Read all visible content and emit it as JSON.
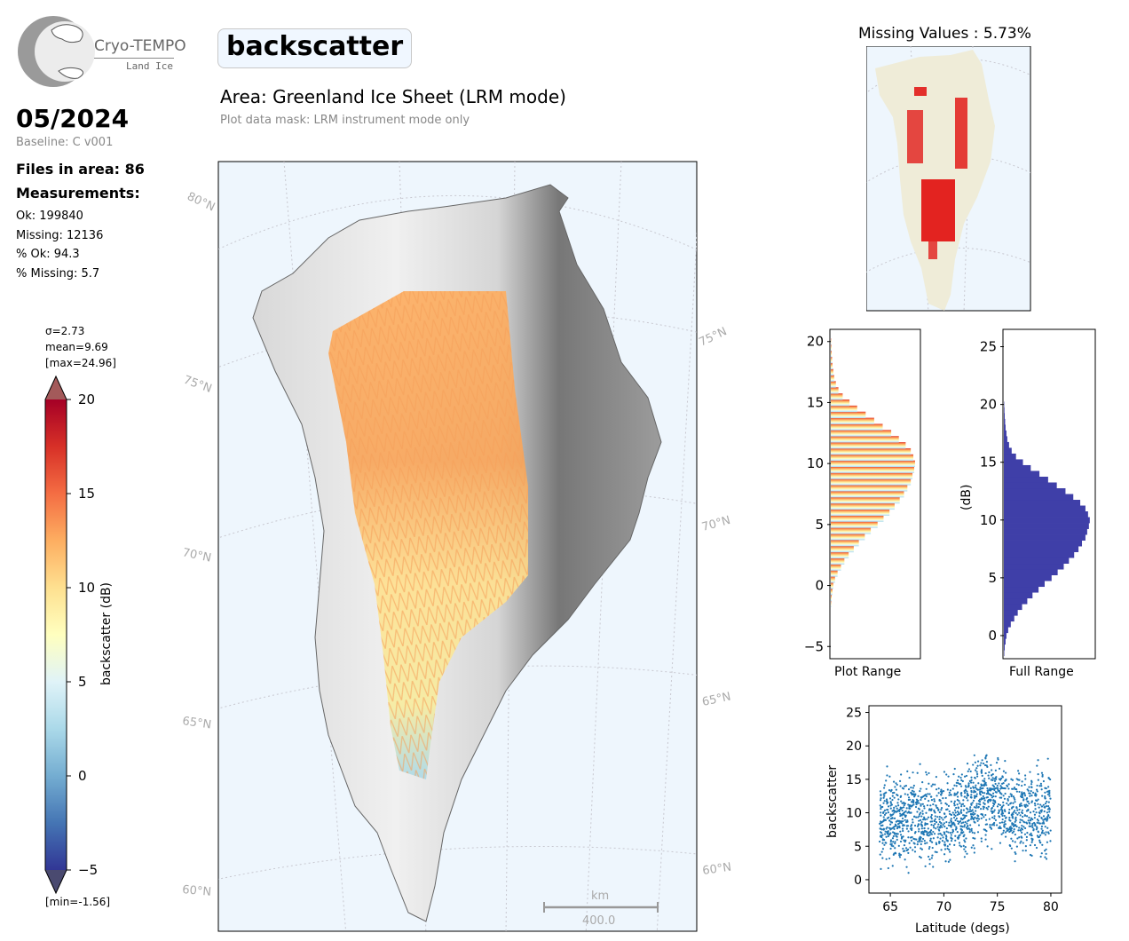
{
  "logo": {
    "name": "Cryo-TEMPO",
    "subtitle": "Land Ice"
  },
  "header": {
    "date": "05/2024",
    "baseline": "Baseline: C v001",
    "files": "Files in area: 86",
    "measurements_label": "Measurements:",
    "stats": [
      "Ok: 199840",
      "Missing: 12136",
      "% Ok: 94.3",
      "% Missing: 5.7"
    ]
  },
  "main": {
    "parameter": "backscatter",
    "area": "Area: Greenland Ice Sheet (LRM mode)",
    "mask": "Plot data mask: LRM instrument mode only"
  },
  "colorbar": {
    "sigma": "σ=2.73",
    "mean": "mean=9.69",
    "max": "[max=24.96]",
    "min": "[min=-1.56]",
    "label": "backscatter (dB)",
    "ticks": [
      "20",
      "15",
      "10",
      "5",
      "0",
      "−5"
    ],
    "range": [
      -5,
      20
    ],
    "colormap": "RdYlBu_r"
  },
  "map": {
    "lat_labels_left": [
      "80°N",
      "75°N",
      "70°N",
      "65°N",
      "60°N"
    ],
    "lat_labels_right": [
      "75°N",
      "70°N",
      "65°N",
      "60°N"
    ],
    "scale_unit": "km",
    "scale_value": "400.0",
    "ocean_color": "#eef6fd"
  },
  "inset": {
    "title": "Missing Values : 5.73%"
  },
  "chart_data": [
    {
      "type": "bar",
      "orientation": "horizontal",
      "title": "Plot Range",
      "xlabel": "Plot Range",
      "ylabel": "",
      "ylim": [
        -6,
        21
      ],
      "yticks": [
        "20",
        "15",
        "10",
        "5",
        "0",
        "−5"
      ],
      "bin_centers": [
        -1.5,
        -1,
        -0.5,
        0,
        0.5,
        1,
        1.5,
        2,
        2.5,
        3,
        3.5,
        4,
        4.5,
        5,
        5.5,
        6,
        6.5,
        7,
        7.5,
        8,
        8.5,
        9,
        9.5,
        10,
        10.5,
        11,
        11.5,
        12,
        12.5,
        13,
        13.5,
        14,
        14.5,
        15,
        15.5,
        16,
        16.5,
        17,
        17.5,
        18,
        18.5,
        19,
        19.5,
        20
      ],
      "values": [
        0.5,
        1,
        2,
        3,
        5,
        8,
        12,
        16,
        21,
        27,
        33,
        40,
        47,
        55,
        62,
        69,
        75,
        81,
        86,
        90,
        94,
        96,
        98,
        99,
        97,
        94,
        88,
        80,
        71,
        61,
        51,
        41,
        31,
        22,
        14,
        9,
        6,
        4,
        3,
        2,
        1.5,
        1,
        0.7,
        0.4
      ],
      "colormap": "RdYlBu_r"
    },
    {
      "type": "bar",
      "orientation": "horizontal",
      "title": "Full Range",
      "xlabel": "Full Range",
      "ylabel": "(dB)",
      "ylim": [
        -2,
        26.5
      ],
      "yticks": [
        "25",
        "20",
        "15",
        "10",
        "5",
        "0"
      ],
      "bin_centers": [
        -1.5,
        -1,
        -0.5,
        0,
        0.5,
        1,
        1.5,
        2,
        2.5,
        3,
        3.5,
        4,
        4.5,
        5,
        5.5,
        6,
        6.5,
        7,
        7.5,
        8,
        8.5,
        9,
        9.5,
        10,
        10.5,
        11,
        11.5,
        12,
        12.5,
        13,
        13.5,
        14,
        14.5,
        15,
        15.5,
        16,
        16.5,
        17,
        17.5,
        18,
        18.5,
        19,
        19.5,
        20
      ],
      "values": [
        0.5,
        1,
        2,
        3,
        5,
        8,
        12,
        16,
        21,
        27,
        33,
        40,
        47,
        55,
        62,
        69,
        75,
        81,
        86,
        90,
        94,
        96,
        98,
        99,
        97,
        94,
        88,
        80,
        71,
        61,
        51,
        41,
        31,
        22,
        14,
        9,
        6,
        4,
        3,
        2,
        1.5,
        1,
        0.7,
        0.4
      ],
      "color": "#3f3fa8"
    },
    {
      "type": "scatter",
      "title": "",
      "xlabel": "Latitude (degs)",
      "ylabel": "backscatter",
      "xlim": [
        63,
        81
      ],
      "ylim": [
        -2,
        26
      ],
      "xticks": [
        "65",
        "70",
        "75",
        "80"
      ],
      "yticks": [
        "25",
        "20",
        "15",
        "10",
        "5",
        "0"
      ],
      "lat_profile": [
        {
          "lat": 64,
          "mean": 9
        },
        {
          "lat": 66,
          "mean": 9
        },
        {
          "lat": 68,
          "mean": 9.5
        },
        {
          "lat": 70,
          "mean": 9.5
        },
        {
          "lat": 72,
          "mean": 10
        },
        {
          "lat": 73.5,
          "mean": 13
        },
        {
          "lat": 75,
          "mean": 12
        },
        {
          "lat": 77,
          "mean": 9.5
        },
        {
          "lat": 79,
          "mean": 10.5
        },
        {
          "lat": 80,
          "mean": 10
        }
      ],
      "color": "#1f77b4"
    }
  ]
}
